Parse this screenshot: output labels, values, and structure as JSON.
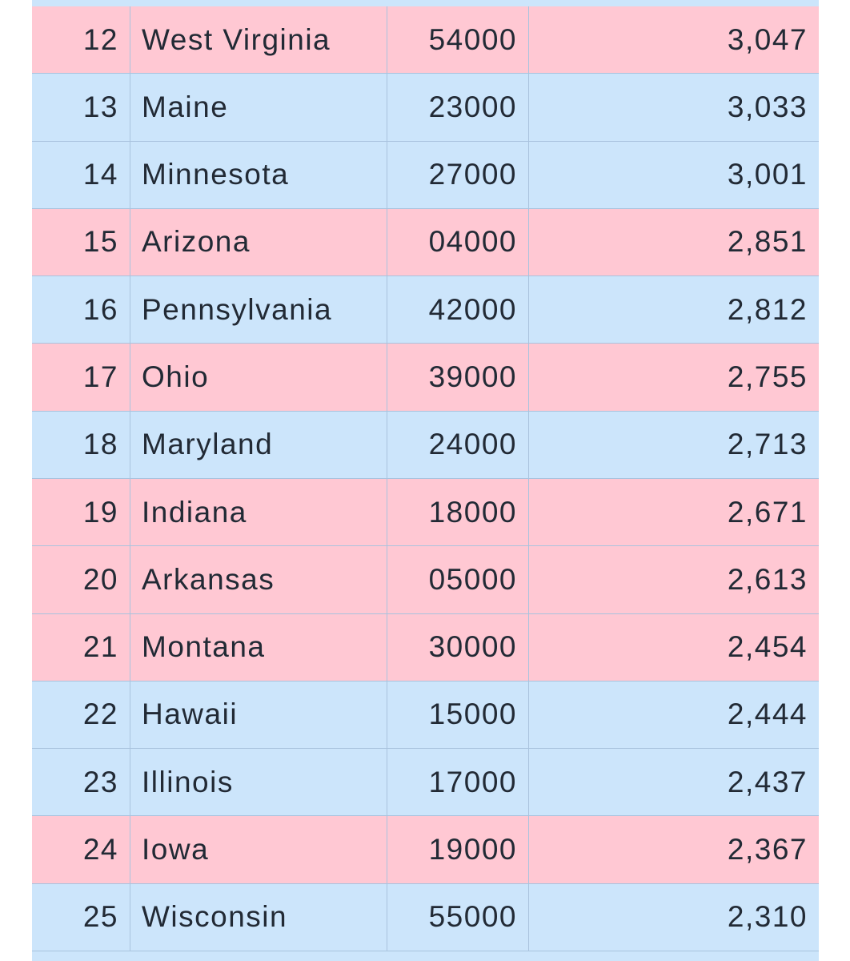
{
  "table": {
    "rows": [
      [
        "12",
        "West Virginia",
        "54000",
        "3,047"
      ],
      [
        "13",
        "Maine",
        "23000",
        "3,033"
      ],
      [
        "14",
        "Minnesota",
        "27000",
        "3,001"
      ],
      [
        "15",
        "Arizona",
        "04000",
        "2,851"
      ],
      [
        "16",
        "Pennsylvania",
        "42000",
        "2,812"
      ],
      [
        "17",
        "Ohio",
        "39000",
        "2,755"
      ],
      [
        "18",
        "Maryland",
        "24000",
        "2,713"
      ],
      [
        "19",
        "Indiana",
        "18000",
        "2,671"
      ],
      [
        "20",
        "Arkansas",
        "05000",
        "2,613"
      ],
      [
        "21",
        "Montana",
        "30000",
        "2,454"
      ],
      [
        "22",
        "Hawaii",
        "15000",
        "2,444"
      ],
      [
        "23",
        "Illinois",
        "17000",
        "2,437"
      ],
      [
        "24",
        "Iowa",
        "19000",
        "2,367"
      ],
      [
        "25",
        "Wisconsin",
        "55000",
        "2,310"
      ]
    ],
    "row_colors": [
      "#ffc8d3",
      "#cce5fb",
      "#cce5fb",
      "#ffc8d3",
      "#cce5fb",
      "#ffc8d3",
      "#cce5fb",
      "#ffc8d3",
      "#ffc8d3",
      "#ffc8d3",
      "#cce5fb",
      "#cce5fb",
      "#ffc8d3",
      "#cce5fb"
    ]
  }
}
